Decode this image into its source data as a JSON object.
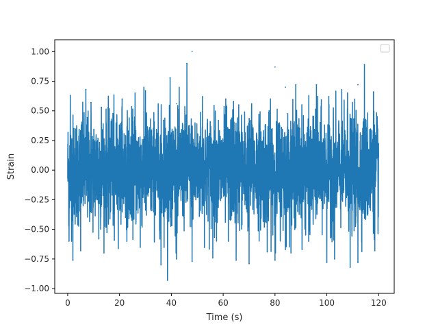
{
  "chart_data": {
    "type": "line",
    "title": "",
    "xlabel": "Time (s)",
    "ylabel": "Strain",
    "xlim": [
      -5,
      126
    ],
    "ylim": [
      -1.04,
      1.1
    ],
    "xticks": [
      0,
      20,
      40,
      60,
      80,
      100,
      120
    ],
    "xtick_labels": [
      "0",
      "20",
      "40",
      "60",
      "80",
      "100",
      "120"
    ],
    "yticks": [
      -1.0,
      -0.75,
      -0.5,
      -0.25,
      0.0,
      0.25,
      0.5,
      0.75,
      1.0
    ],
    "ytick_labels": [
      "−1.00",
      "−0.75",
      "−0.50",
      "−0.25",
      "0.00",
      "0.25",
      "0.50",
      "0.75",
      "1.00"
    ],
    "grid": false,
    "legend": {
      "position": "upper-right",
      "entries": []
    },
    "series": [
      {
        "color": "#1f77b4",
        "x_range": [
          0,
          120
        ],
        "y_range_observed": [
          -0.93,
          1.0
        ],
        "typical_amplitude": 0.55,
        "peaks": [
          {
            "x": 1.0,
            "y": 0.63
          },
          {
            "x": 7.0,
            "y": 0.68
          },
          {
            "x": 9.0,
            "y": 0.57
          },
          {
            "x": 13.0,
            "y": 0.53
          },
          {
            "x": 17.0,
            "y": 0.43
          },
          {
            "x": 21.0,
            "y": 0.6
          },
          {
            "x": 26.0,
            "y": 0.65
          },
          {
            "x": 30.0,
            "y": 0.67
          },
          {
            "x": 37.0,
            "y": 0.42
          },
          {
            "x": 39.5,
            "y": 0.78
          },
          {
            "x": 42.0,
            "y": 0.56
          },
          {
            "x": 46.0,
            "y": 0.9
          },
          {
            "x": 48.0,
            "y": 1.0
          },
          {
            "x": 52.0,
            "y": 0.62
          },
          {
            "x": 61.0,
            "y": 0.6
          },
          {
            "x": 64.0,
            "y": 0.58
          },
          {
            "x": 66.0,
            "y": 0.55
          },
          {
            "x": 71.0,
            "y": 0.56
          },
          {
            "x": 80.0,
            "y": 0.87
          },
          {
            "x": 84.0,
            "y": 0.7
          },
          {
            "x": 88.0,
            "y": 0.72
          },
          {
            "x": 96.0,
            "y": 0.72
          },
          {
            "x": 108.0,
            "y": 0.65
          },
          {
            "x": 112.0,
            "y": 0.72
          },
          {
            "x": 114.5,
            "y": 0.89
          },
          {
            "x": 118.0,
            "y": 0.66
          }
        ],
        "troughs": [
          {
            "x": 0.5,
            "y": -0.6
          },
          {
            "x": 2.0,
            "y": -0.76
          },
          {
            "x": 5.0,
            "y": -0.68
          },
          {
            "x": 12.0,
            "y": -0.58
          },
          {
            "x": 18.0,
            "y": -0.59
          },
          {
            "x": 28.0,
            "y": -0.65
          },
          {
            "x": 36.0,
            "y": -0.8
          },
          {
            "x": 38.5,
            "y": -0.93
          },
          {
            "x": 42.0,
            "y": -0.75
          },
          {
            "x": 48.0,
            "y": -0.77
          },
          {
            "x": 56.0,
            "y": -0.74
          },
          {
            "x": 62.0,
            "y": -0.6
          },
          {
            "x": 65.0,
            "y": -0.76
          },
          {
            "x": 70.0,
            "y": -0.79
          },
          {
            "x": 77.0,
            "y": -0.69
          },
          {
            "x": 80.0,
            "y": -0.76
          },
          {
            "x": 84.0,
            "y": -0.67
          },
          {
            "x": 93.0,
            "y": -0.6
          },
          {
            "x": 100.0,
            "y": -0.78
          },
          {
            "x": 103.0,
            "y": -0.75
          },
          {
            "x": 109.0,
            "y": -0.82
          },
          {
            "x": 112.0,
            "y": -0.78
          },
          {
            "x": 118.5,
            "y": -0.68
          }
        ]
      }
    ]
  }
}
